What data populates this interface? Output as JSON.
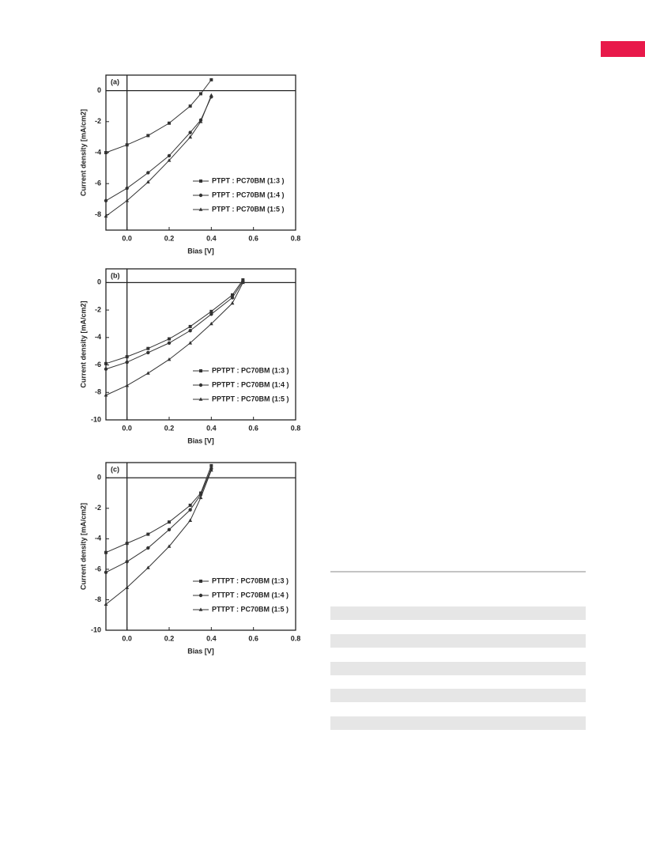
{
  "chart_data": [
    {
      "type": "line",
      "title": "(a)",
      "x_label": "Bias [V]",
      "y_label": "Current density [mA/cm2]",
      "x": [
        -0.1,
        0,
        0.1,
        0.2,
        0.3,
        0.35,
        0.4
      ],
      "series": [
        {
          "name": "PTPT : PC70BM (1:3 )",
          "color": "#333333",
          "marker": "square",
          "values": [
            -4.0,
            -3.5,
            -2.9,
            -2.1,
            -1.0,
            -0.2,
            0.7
          ]
        },
        {
          "name": "PTPT : PC70BM (1:4 )",
          "color": "#333333",
          "marker": "circle",
          "values": [
            -7.1,
            -6.3,
            -5.3,
            -4.2,
            -2.7,
            -1.9,
            -0.4
          ]
        },
        {
          "name": "PTPT : PC70BM (1:5 )",
          "color": "#333333",
          "marker": "triangle",
          "values": [
            -8.1,
            -7.1,
            -5.9,
            -4.5,
            -3.0,
            -2.0,
            -0.3
          ]
        }
      ],
      "xlim": [
        -0.1,
        0.8
      ],
      "ylim": [
        -9,
        1
      ],
      "xticks": [
        {
          "value": 0,
          "label": "0.0"
        },
        0.2,
        0.4,
        0.6,
        0.8
      ],
      "yticks": [
        0,
        -2,
        -4,
        -6,
        -8
      ],
      "legend": "lower right"
    },
    {
      "type": "line",
      "title": "(b)",
      "x_label": "Bias [V]",
      "y_label": "Current density [mA/cm2]",
      "x": [
        -0.1,
        0,
        0.1,
        0.2,
        0.3,
        0.4,
        0.5,
        0.55
      ],
      "series": [
        {
          "name": "PPTPT : PC70BM (1:3 )",
          "color": "#333333",
          "marker": "square",
          "values": [
            -5.9,
            -5.4,
            -4.8,
            -4.1,
            -3.2,
            -2.1,
            -0.9,
            0.2
          ]
        },
        {
          "name": "PPTPT : PC70BM (1:4 )",
          "color": "#333333",
          "marker": "circle",
          "values": [
            -6.3,
            -5.8,
            -5.1,
            -4.4,
            -3.5,
            -2.3,
            -1.1,
            0.1
          ]
        },
        {
          "name": "PPTPT : PC70BM (1:5 )",
          "color": "#333333",
          "marker": "triangle",
          "values": [
            -8.2,
            -7.5,
            -6.6,
            -5.6,
            -4.4,
            -3.0,
            -1.5,
            0.0
          ]
        }
      ],
      "xlim": [
        -0.1,
        0.8
      ],
      "ylim": [
        -10,
        1
      ],
      "xticks": [
        {
          "value": 0,
          "label": "0.0"
        },
        0.2,
        0.4,
        0.6,
        0.8
      ],
      "yticks": [
        0,
        -2,
        -4,
        -6,
        -8,
        -10
      ],
      "legend": "lower right"
    },
    {
      "type": "line",
      "title": "(c)",
      "x_label": "Bias [V]",
      "y_label": "Current density [mA/cm2]",
      "x": [
        -0.1,
        0,
        0.1,
        0.2,
        0.3,
        0.35,
        0.4
      ],
      "series": [
        {
          "name": "PTTPT : PC70BM (1:3 )",
          "color": "#333333",
          "marker": "square",
          "values": [
            -4.9,
            -4.3,
            -3.7,
            -2.9,
            -1.8,
            -1.0,
            0.8
          ]
        },
        {
          "name": "PTTPT : PC70BM (1:4 )",
          "color": "#333333",
          "marker": "circle",
          "values": [
            -6.2,
            -5.5,
            -4.6,
            -3.4,
            -2.1,
            -1.1,
            0.6
          ]
        },
        {
          "name": "PTTPT : PC70BM (1:5 )",
          "color": "#333333",
          "marker": "triangle",
          "values": [
            -8.3,
            -7.2,
            -5.9,
            -4.5,
            -2.8,
            -1.3,
            0.5
          ]
        }
      ],
      "xlim": [
        -0.1,
        0.8
      ],
      "ylim": [
        -10,
        1
      ],
      "xticks": [
        {
          "value": 0,
          "label": "0.0"
        },
        0.2,
        0.4,
        0.6,
        0.8
      ],
      "yticks": [
        0,
        -2,
        -4,
        -6,
        -8,
        -10
      ],
      "legend": "lower right"
    }
  ]
}
